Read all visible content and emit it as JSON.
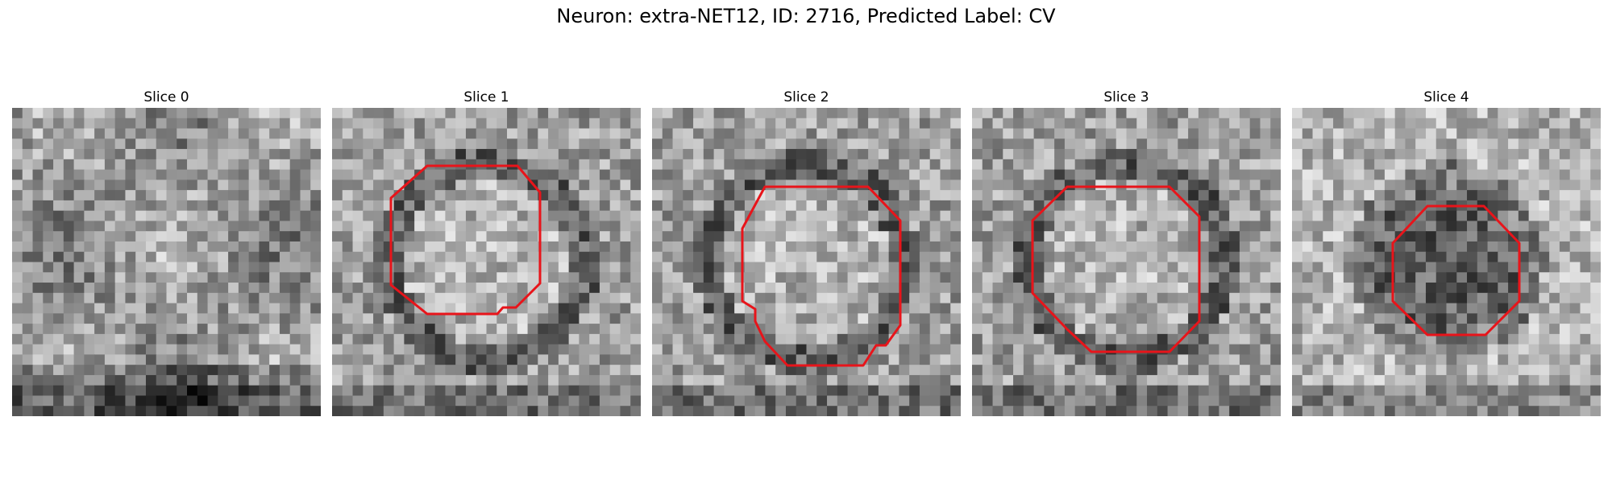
{
  "title": "Neuron: extra-NET12, ID: 2716, Predicted Label: CV",
  "colors": {
    "contour": "#e8141a"
  },
  "panels": [
    {
      "title": "Slice 0",
      "seed": 11,
      "has_contour": false,
      "pattern": "blotch"
    },
    {
      "title": "Slice 1",
      "seed": 23,
      "has_contour": true,
      "pattern": "ring"
    },
    {
      "title": "Slice 2",
      "seed": 37,
      "has_contour": true,
      "pattern": "ring"
    },
    {
      "title": "Slice 3",
      "seed": 51,
      "has_contour": true,
      "pattern": "ring"
    },
    {
      "title": "Slice 4",
      "seed": 67,
      "has_contour": true,
      "pattern": "dark"
    }
  ]
}
